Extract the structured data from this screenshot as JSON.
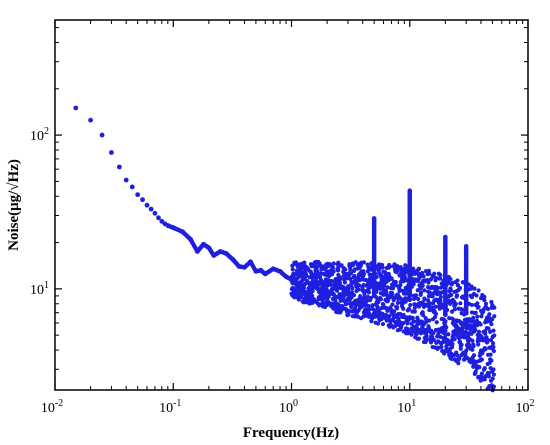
{
  "chart_data": {
    "type": "scatter",
    "title": "",
    "xlabel": "Frequency(Hz)",
    "ylabel": "Noise(μg/√Hz)",
    "xscale": "log",
    "yscale": "log",
    "xlim": [
      0.01,
      100
    ],
    "ylim": [
      2.2,
      560
    ],
    "grid": false,
    "x_ticks": [
      {
        "value": 0.01,
        "base": "10",
        "exp": "-2"
      },
      {
        "value": 0.1,
        "base": "10",
        "exp": "-1"
      },
      {
        "value": 1,
        "base": "10",
        "exp": "0"
      },
      {
        "value": 10,
        "base": "10",
        "exp": "1"
      },
      {
        "value": 100,
        "base": "10",
        "exp": "2"
      }
    ],
    "y_ticks": [
      {
        "value": 10,
        "base": "10",
        "exp": "1"
      },
      {
        "value": 100,
        "base": "10",
        "exp": "2"
      }
    ],
    "series": [
      {
        "color": "#1f1fe0",
        "points": [
          [
            0.015,
            150
          ],
          [
            0.02,
            125
          ],
          [
            0.025,
            100
          ],
          [
            0.03,
            77
          ],
          [
            0.035,
            62
          ],
          [
            0.04,
            51
          ],
          [
            0.045,
            46
          ],
          [
            0.05,
            41
          ],
          [
            0.055,
            38
          ],
          [
            0.06,
            35
          ],
          [
            0.065,
            33
          ],
          [
            0.07,
            31
          ],
          [
            0.075,
            29
          ],
          [
            0.08,
            27.5
          ],
          [
            0.085,
            26.5
          ],
          [
            0.09,
            25.8
          ],
          [
            0.1,
            25
          ],
          [
            0.12,
            23.5
          ],
          [
            0.14,
            21
          ],
          [
            0.16,
            17.5
          ],
          [
            0.18,
            19.5
          ],
          [
            0.2,
            18.5
          ],
          [
            0.22,
            16.5
          ],
          [
            0.25,
            17.5
          ],
          [
            0.28,
            17
          ],
          [
            0.32,
            15.5
          ],
          [
            0.36,
            14
          ],
          [
            0.4,
            13.8
          ],
          [
            0.45,
            15
          ],
          [
            0.5,
            13
          ],
          [
            0.55,
            13.2
          ],
          [
            0.6,
            12.5
          ],
          [
            0.7,
            13.5
          ],
          [
            0.8,
            13
          ],
          [
            0.9,
            12
          ],
          [
            1.0,
            11.5
          ],
          [
            1.2,
            11
          ],
          [
            1.5,
            11
          ],
          [
            2.0,
            10.5
          ],
          [
            2.5,
            10.2
          ],
          [
            3.0,
            10
          ],
          [
            4.0,
            9.8
          ],
          [
            5.0,
            9.5
          ],
          [
            6.0,
            9.2
          ],
          [
            7.0,
            9
          ],
          [
            8.0,
            8.8
          ],
          [
            10.0,
            8.5
          ],
          [
            12.0,
            8
          ],
          [
            15.0,
            7.5
          ],
          [
            20.0,
            6.8
          ],
          [
            25.0,
            6.2
          ],
          [
            30.0,
            5.8
          ],
          [
            35.0,
            5.3
          ],
          [
            40.0,
            4.9
          ],
          [
            45.0,
            4.5
          ],
          [
            50.0,
            4.2
          ]
        ],
        "spikes": [
          {
            "x": 5,
            "y_low": 9,
            "y_high": 29
          },
          {
            "x": 10,
            "y_low": 9,
            "y_high": 44
          },
          {
            "x": 20,
            "y_low": 7,
            "y_high": 22
          },
          {
            "x": 30,
            "y_low": 7,
            "y_high": 19
          }
        ],
        "noise_band": {
          "x_from": 1.0,
          "x_to": 52.0,
          "spread": 0.12
        }
      }
    ]
  }
}
